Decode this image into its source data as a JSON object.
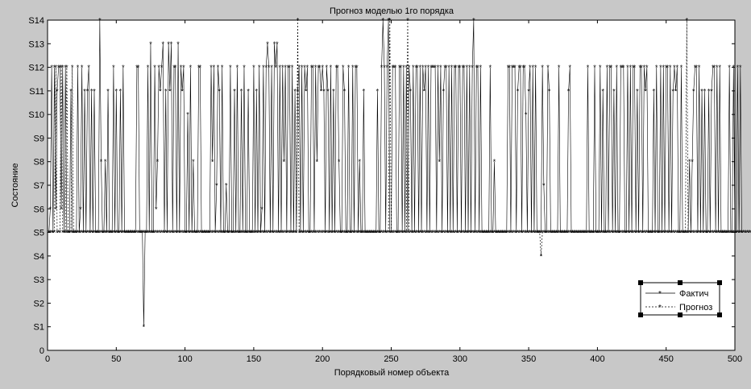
{
  "chart_data": {
    "type": "line",
    "title": "Прогноз моделью 1го порядка",
    "xlabel": "Порядковый номер объекта",
    "ylabel": "Состояние",
    "xlim": [
      0,
      500
    ],
    "ylim": [
      0,
      14
    ],
    "grid": false,
    "legend_position": "bottom-right",
    "x_ticks": [
      0,
      50,
      100,
      150,
      200,
      250,
      300,
      350,
      400,
      450,
      500
    ],
    "x_tick_labels": [
      "0",
      "50",
      "100",
      "150",
      "200",
      "250",
      "300",
      "350",
      "400",
      "450",
      "500"
    ],
    "y_ticks": [
      0,
      1,
      2,
      3,
      4,
      5,
      6,
      7,
      8,
      9,
      10,
      11,
      12,
      13,
      14
    ],
    "y_tick_labels": [
      "0",
      "S1",
      "S2",
      "S3",
      "S4",
      "S5",
      "S6",
      "S7",
      "S8",
      "S9",
      "S10",
      "S11",
      "S12",
      "S13",
      "S14"
    ],
    "x_start": 1,
    "x_step": 1,
    "series": [
      {
        "name": "Фактич",
        "line_style": "solid",
        "marker": "*",
        "values": [
          5,
          6,
          12,
          5,
          12,
          6,
          11,
          12,
          12,
          6,
          12,
          5,
          12,
          5,
          5,
          5,
          11,
          5,
          5,
          5,
          5,
          12,
          5,
          6,
          12,
          5,
          11,
          5,
          11,
          12,
          5,
          11,
          5,
          11,
          5,
          5,
          5,
          14,
          8,
          5,
          5,
          8,
          5,
          11,
          5,
          5,
          5,
          12,
          5,
          11,
          5,
          5,
          11,
          5,
          12,
          5,
          5,
          5,
          5,
          5,
          5,
          5,
          5,
          5,
          12,
          12,
          5,
          5,
          5,
          1,
          5,
          5,
          12,
          5,
          13,
          5,
          5,
          12,
          6,
          8,
          12,
          11,
          12,
          13,
          5,
          11,
          5,
          13,
          11,
          13,
          5,
          12,
          12,
          5,
          13,
          5,
          12,
          11,
          12,
          5,
          5,
          10,
          5,
          12,
          5,
          8,
          5,
          5,
          5,
          12,
          12,
          5,
          5,
          5,
          5,
          5,
          5,
          5,
          12,
          8,
          12,
          5,
          7,
          12,
          11,
          5,
          12,
          5,
          5,
          7,
          5,
          5,
          12,
          5,
          5,
          11,
          5,
          12,
          5,
          5,
          11,
          5,
          12,
          5,
          5,
          11,
          5,
          5,
          5,
          12,
          5,
          11,
          5,
          12,
          5,
          6,
          12,
          5,
          12,
          13,
          12,
          5,
          12,
          5,
          13,
          12,
          13,
          5,
          12,
          5,
          12,
          8,
          12,
          5,
          12,
          12,
          5,
          12,
          5,
          11,
          5,
          11,
          12,
          5,
          12,
          5,
          12,
          11,
          12,
          5,
          5,
          12,
          12,
          5,
          12,
          8,
          12,
          12,
          11,
          12,
          11,
          5,
          12,
          11,
          5,
          12,
          5,
          11,
          5,
          12,
          12,
          8,
          5,
          5,
          12,
          11,
          5,
          5,
          12,
          5,
          5,
          12,
          5,
          12,
          12,
          5,
          8,
          5,
          5,
          11,
          5,
          5,
          5,
          5,
          5,
          5,
          5,
          5,
          5,
          11,
          5,
          5,
          12,
          14,
          12,
          5,
          12,
          14,
          5,
          5,
          12,
          12,
          12,
          5,
          5,
          12,
          12,
          5,
          12,
          5,
          12,
          5,
          12,
          11,
          5,
          12,
          5,
          12,
          12,
          5,
          12,
          5,
          12,
          11,
          12,
          5,
          12,
          5,
          12,
          12,
          12,
          12,
          5,
          12,
          8,
          12,
          5,
          11,
          12,
          12,
          5,
          12,
          5,
          12,
          5,
          12,
          12,
          5,
          12,
          12,
          5,
          12,
          12,
          5,
          12,
          5,
          12,
          5,
          12,
          14,
          5,
          12,
          12,
          5,
          12,
          5,
          5,
          5,
          5,
          5,
          5,
          12,
          5,
          5,
          8,
          5,
          5,
          5,
          5,
          5,
          5,
          5,
          5,
          5,
          12,
          12,
          5,
          12,
          12,
          12,
          5,
          11,
          12,
          12,
          5,
          12,
          12,
          10,
          5,
          11,
          12,
          5,
          12,
          5,
          12,
          5,
          5,
          5,
          5,
          12,
          7,
          5,
          5,
          12,
          11,
          5,
          5,
          5,
          5,
          5,
          5,
          12,
          5,
          5,
          5,
          5,
          5,
          5,
          11,
          12,
          5,
          5,
          5,
          5,
          5,
          5,
          5,
          5,
          5,
          5,
          5,
          5,
          12,
          5,
          5,
          5,
          5,
          12,
          5,
          5,
          5,
          12,
          5,
          11,
          5,
          5,
          12,
          5,
          12,
          12,
          5,
          11,
          5,
          12,
          5,
          5,
          12,
          12,
          12,
          5,
          5,
          12,
          5,
          12,
          5,
          12,
          12,
          5,
          11,
          5,
          12,
          12,
          5,
          12,
          11,
          12,
          5,
          5,
          5,
          5,
          11,
          5,
          12,
          5,
          5,
          12,
          5,
          12,
          5,
          12,
          12,
          5,
          12,
          5,
          11,
          12,
          11,
          12,
          5,
          5,
          12,
          5,
          5,
          5,
          5,
          5,
          8,
          5,
          8,
          11,
          12,
          12,
          5,
          12,
          5,
          11,
          5,
          11,
          5,
          5,
          11,
          5,
          11,
          12,
          12,
          5,
          12,
          5,
          12,
          5,
          5,
          5,
          5,
          5,
          5,
          12,
          5,
          5,
          12,
          5,
          5,
          12,
          5,
          12,
          5
        ],
        "color": "#000000"
      },
      {
        "name": "Прогноз",
        "line_style": "dashed",
        "marker": "*",
        "values": [
          5,
          5,
          5,
          5,
          5,
          12,
          5,
          5,
          5,
          12,
          5,
          5,
          5,
          12,
          5,
          5,
          5,
          12,
          5,
          5,
          5,
          5,
          5,
          5,
          5,
          5,
          5,
          5,
          5,
          5,
          5,
          5,
          5,
          5,
          5,
          5,
          5,
          5,
          5,
          5,
          5,
          5,
          5,
          5,
          5,
          5,
          5,
          5,
          5,
          5,
          5,
          5,
          5,
          5,
          5,
          5,
          5,
          5,
          5,
          5,
          5,
          5,
          5,
          5,
          5,
          5,
          5,
          5,
          5,
          5,
          5,
          5,
          5,
          5,
          5,
          5,
          5,
          5,
          5,
          5,
          5,
          5,
          5,
          5,
          5,
          5,
          5,
          5,
          5,
          5,
          5,
          5,
          5,
          5,
          5,
          5,
          5,
          5,
          5,
          5,
          5,
          5,
          5,
          5,
          5,
          5,
          5,
          5,
          5,
          5,
          5,
          5,
          5,
          5,
          5,
          5,
          5,
          5,
          5,
          5,
          5,
          5,
          5,
          5,
          5,
          5,
          5,
          5,
          5,
          5,
          5,
          5,
          5,
          5,
          5,
          5,
          5,
          5,
          5,
          5,
          5,
          5,
          5,
          5,
          5,
          5,
          5,
          5,
          5,
          5,
          5,
          5,
          5,
          5,
          5,
          5,
          5,
          5,
          5,
          5,
          5,
          5,
          5,
          5,
          5,
          5,
          5,
          5,
          5,
          5,
          5,
          5,
          5,
          5,
          5,
          5,
          5,
          5,
          5,
          5,
          5,
          14,
          5,
          5,
          5,
          5,
          5,
          5,
          5,
          5,
          5,
          5,
          5,
          5,
          5,
          5,
          5,
          5,
          5,
          5,
          5,
          5,
          5,
          5,
          5,
          5,
          5,
          5,
          5,
          5,
          5,
          5,
          5,
          5,
          5,
          5,
          5,
          5,
          5,
          5,
          5,
          5,
          5,
          5,
          5,
          5,
          5,
          5,
          5,
          5,
          5,
          5,
          5,
          5,
          5,
          5,
          5,
          5,
          5,
          5,
          5,
          5,
          5,
          5,
          5,
          5,
          5,
          5,
          14,
          5,
          5,
          5,
          5,
          5,
          5,
          5,
          5,
          5,
          5,
          5,
          5,
          14,
          5,
          5,
          5,
          5,
          5,
          5,
          5,
          5,
          5,
          5,
          5,
          5,
          5,
          5,
          5,
          5,
          5,
          5,
          5,
          5,
          5,
          5,
          5,
          5,
          5,
          5,
          5,
          5,
          5,
          5,
          5,
          5,
          5,
          5,
          5,
          5,
          5,
          5,
          5,
          5,
          5,
          5,
          5,
          5,
          5,
          5,
          5,
          5,
          5,
          5,
          5,
          5,
          5,
          5,
          5,
          5,
          5,
          5,
          5,
          5,
          5,
          5,
          5,
          5,
          5,
          5,
          5,
          5,
          5,
          5,
          5,
          5,
          5,
          5,
          5,
          5,
          5,
          5,
          5,
          5,
          5,
          5,
          5,
          5,
          5,
          5,
          5,
          5,
          5,
          5,
          5,
          5,
          5,
          5,
          5,
          5,
          4,
          5,
          5,
          5,
          5,
          5,
          5,
          5,
          5,
          5,
          5,
          5,
          5,
          5,
          5,
          5,
          5,
          5,
          5,
          5,
          5,
          5,
          5,
          5,
          5,
          5,
          5,
          5,
          5,
          5,
          5,
          5,
          5,
          5,
          5,
          5,
          5,
          5,
          5,
          5,
          5,
          5,
          5,
          5,
          5,
          5,
          5,
          5,
          5,
          5,
          5,
          5,
          5,
          5,
          5,
          5,
          5,
          5,
          5,
          5,
          5,
          5,
          5,
          5,
          5,
          5,
          5,
          5,
          5,
          5,
          5,
          5,
          5,
          5,
          5,
          5,
          5,
          5,
          5,
          5,
          5,
          5,
          5,
          5,
          5,
          5,
          5,
          5,
          5,
          5,
          5,
          5,
          5,
          5,
          5,
          5,
          5,
          5,
          5,
          5,
          5,
          5,
          5,
          5,
          5,
          5,
          14,
          5,
          5,
          5,
          5,
          5,
          5,
          5,
          5,
          5,
          5,
          5,
          5,
          5,
          5,
          5,
          5,
          5,
          5,
          5,
          5,
          5,
          5,
          5,
          5,
          5,
          5,
          5,
          5,
          5,
          5,
          5,
          5,
          5,
          5,
          5,
          5,
          5,
          5,
          5,
          5,
          5,
          5,
          5,
          5,
          5,
          5,
          5,
          5,
          5,
          5,
          5,
          5,
          5,
          5,
          5,
          5,
          5,
          5,
          5,
          5,
          5,
          5,
          5,
          5,
          5,
          5,
          5,
          5,
          5,
          5,
          5,
          5,
          5,
          5,
          5,
          5
        ],
        "color": "#000000"
      }
    ]
  }
}
